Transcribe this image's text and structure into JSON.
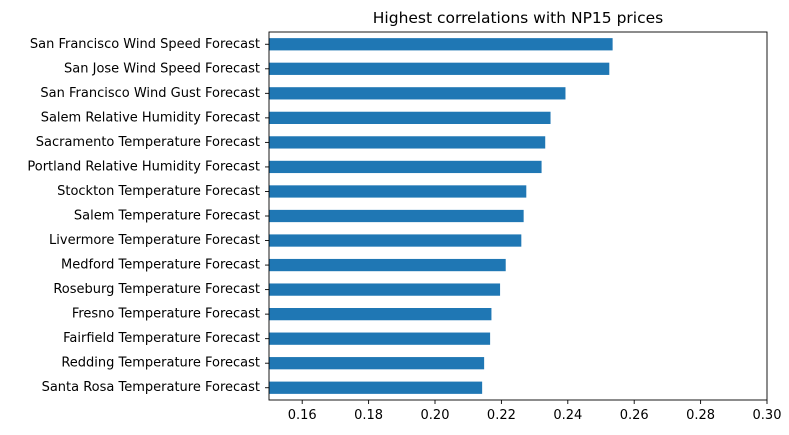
{
  "chart_data": {
    "type": "bar",
    "orientation": "horizontal",
    "title": "Highest correlations with NP15 prices",
    "xlabel": "",
    "ylabel": "",
    "xlim": [
      0.15,
      0.3
    ],
    "xticks": [
      "0.16",
      "0.18",
      "0.20",
      "0.22",
      "0.24",
      "0.26",
      "0.28",
      "0.30"
    ],
    "xtick_values": [
      0.16,
      0.18,
      0.2,
      0.22,
      0.24,
      0.26,
      0.28,
      0.3
    ],
    "grid": false,
    "legend": "none",
    "bar_color": "#1f77b4",
    "categories": [
      "San Francisco Wind Speed Forecast",
      "San Jose Wind Speed Forecast",
      "San Francisco Wind Gust Forecast",
      "Salem Relative Humidity Forecast",
      "Sacramento Temperature Forecast",
      "Portland Relative Humidity Forecast",
      "Stockton Temperature Forecast",
      "Salem Temperature Forecast",
      "Livermore Temperature Forecast",
      "Medford Temperature Forecast",
      "Roseburg Temperature Forecast",
      "Fresno Temperature Forecast",
      "Fairfield Temperature Forecast",
      "Redding Temperature Forecast",
      "Santa Rosa Temperature Forecast"
    ],
    "values": [
      0.2535,
      0.2525,
      0.2393,
      0.2348,
      0.2332,
      0.2321,
      0.2275,
      0.2267,
      0.226,
      0.2213,
      0.2196,
      0.217,
      0.2166,
      0.2148,
      0.2142
    ]
  }
}
